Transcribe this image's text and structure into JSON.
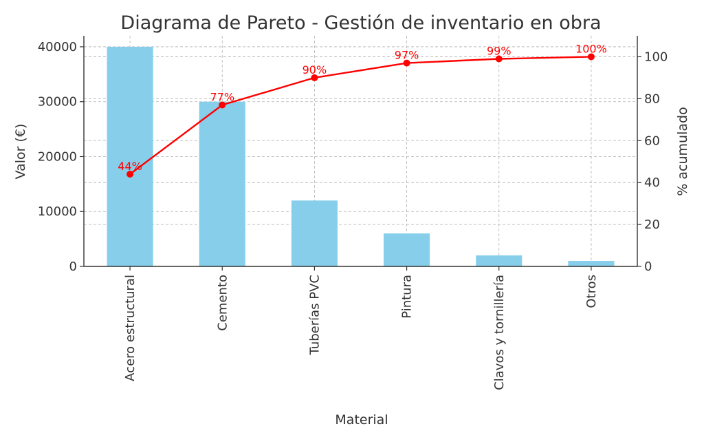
{
  "chart_data": {
    "type": "bar",
    "title": "Diagrama de Pareto - Gestión de inventario en obra",
    "xlabel": "Material",
    "ylabel": "Valor (€)",
    "y2label": "% acumulado",
    "categories": [
      "Acero estructural",
      "Cemento",
      "Tuberías PVC",
      "Pintura",
      "Clavos y tornillería",
      "Otros"
    ],
    "series": [
      {
        "values": [
          40000,
          30000,
          12000,
          6000,
          2000,
          1000
        ]
      },
      {
        "values": [
          44,
          77,
          90,
          97,
          99,
          100
        ]
      }
    ],
    "pct_labels": [
      "44%",
      "77%",
      "90%",
      "97%",
      "99%",
      "100%"
    ],
    "ylim": [
      0,
      42000
    ],
    "y2lim": [
      0,
      110
    ],
    "yticks": [
      0,
      10000,
      20000,
      30000,
      40000
    ],
    "y2ticks": [
      0,
      20,
      40,
      60,
      80,
      100
    ],
    "grid": true,
    "colors": {
      "bars": "#87ceeb",
      "line": "#ff0000",
      "text": "#333333"
    }
  }
}
